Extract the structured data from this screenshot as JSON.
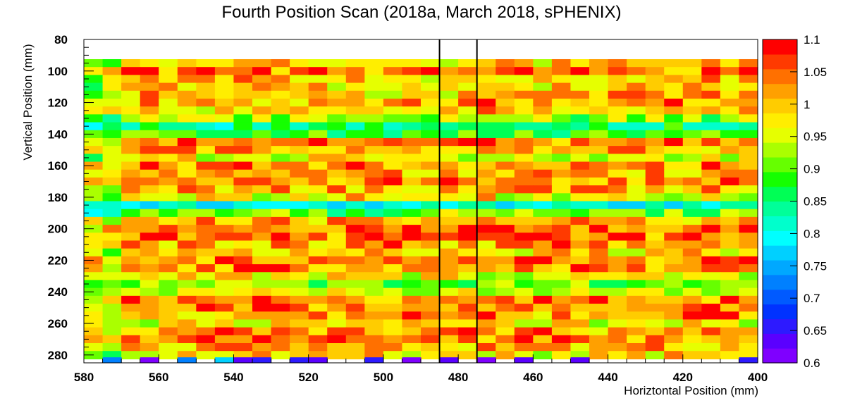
{
  "chart_data": {
    "type": "heatmap",
    "title": "Fourth Position Scan (2018a, March 2018, sPHENIX)",
    "xlabel": "Horiztontal Position (mm)",
    "ylabel": "Vertical Position (mm)",
    "x_axis": {
      "range": [
        580,
        400
      ],
      "reversed": true,
      "ticks": [
        580,
        560,
        540,
        520,
        500,
        480,
        460,
        440,
        420,
        400
      ]
    },
    "y_axis": {
      "range": [
        80,
        285
      ],
      "reversed": true,
      "ticks": [
        80,
        100,
        120,
        140,
        160,
        180,
        200,
        220,
        240,
        260,
        280
      ]
    },
    "colorbar": {
      "range": [
        0.6,
        1.1
      ],
      "ticks": [
        "0.6",
        "0.65",
        "0.7",
        "0.75",
        "0.8",
        "0.85",
        "0.9",
        "0.95",
        "1",
        "1.05",
        "1.1"
      ]
    },
    "grid": false,
    "vertical_markers_x": [
      485,
      475
    ],
    "data_summary": {
      "x_bin_width_mm": 5,
      "y_bin_width_mm": 5,
      "y_rows_mm": [
        95,
        100,
        105,
        110,
        115,
        120,
        125,
        130,
        135,
        140,
        145,
        150,
        155,
        160,
        165,
        170,
        175,
        180,
        185,
        190,
        195,
        200,
        205,
        210,
        215,
        220,
        225,
        230,
        235,
        240,
        245,
        250,
        255,
        260,
        265,
        270,
        275,
        280
      ],
      "row_mean_response": [
        0.99,
        1.03,
        1.0,
        0.99,
        1.0,
        1.02,
        0.99,
        0.93,
        0.85,
        0.89,
        1.03,
        1.02,
        0.96,
        1.03,
        1.01,
        1.02,
        1.01,
        0.97,
        0.8,
        0.9,
        1.01,
        1.05,
        1.05,
        1.02,
        1.0,
        1.04,
        1.03,
        0.97,
        0.91,
        0.94,
        1.03,
        1.04,
        1.02,
        0.97,
        1.02,
        1.04,
        1.01,
        0.97
      ],
      "low_response_rows_mm": [
        135,
        140,
        185,
        235,
        240
      ],
      "edge_row_mm": 284,
      "edge_row_values": [
        0.72,
        0.62,
        0.72,
        0.77,
        0.64,
        0.65,
        0.66,
        0.64,
        0.66,
        0.62,
        0.64,
        0.62,
        0.63,
        0.64,
        0.66
      ]
    },
    "annotations": []
  }
}
